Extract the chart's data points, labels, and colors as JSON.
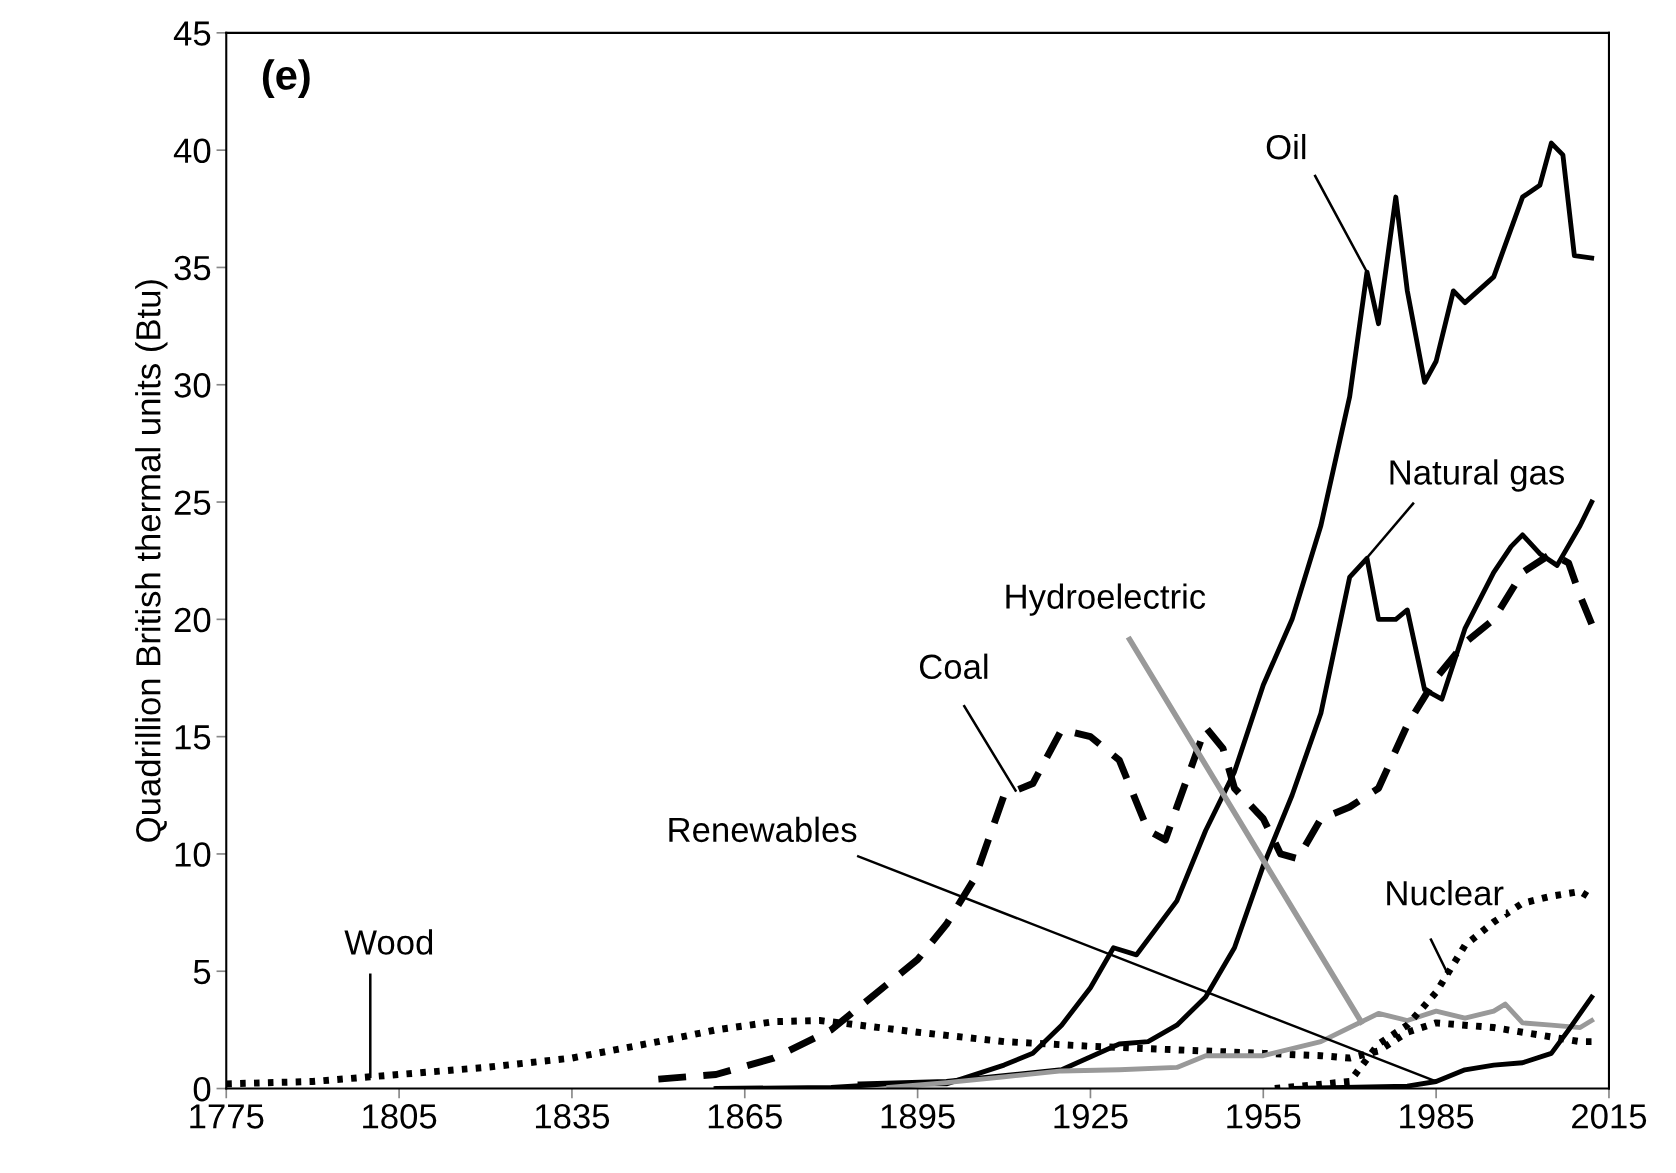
{
  "chart_data": {
    "type": "line",
    "title": "(e)",
    "ylabel": "Quadrillion British thermal units (Btu)",
    "xlim": [
      1775,
      2015
    ],
    "xticks": [
      1775,
      1805,
      1835,
      1865,
      1895,
      1925,
      1955,
      1985,
      2015
    ],
    "ylim": [
      0,
      45
    ],
    "yticks": [
      0,
      5,
      10,
      15,
      20,
      25,
      30,
      35,
      40,
      45
    ],
    "grid": false,
    "legend": false,
    "marker": "none",
    "series": [
      {
        "name": "Wood",
        "color": "#000000",
        "line_style": "dotted",
        "x": [
          1775,
          1790,
          1800,
          1810,
          1820,
          1835,
          1850,
          1860,
          1870,
          1878,
          1885,
          1895,
          1910,
          1925,
          1945,
          1955,
          1965,
          1970,
          1975,
          1980,
          1985,
          1990,
          1995,
          2000,
          2005,
          2010,
          2012
        ],
        "values": [
          0.2,
          0.3,
          0.5,
          0.7,
          0.9,
          1.3,
          2.0,
          2.5,
          2.85,
          2.9,
          2.7,
          2.4,
          2.0,
          1.8,
          1.6,
          1.5,
          1.4,
          1.3,
          1.6,
          2.4,
          2.8,
          2.7,
          2.6,
          2.4,
          2.2,
          2.0,
          2.0
        ]
      },
      {
        "name": "Coal",
        "color": "#000000",
        "line_style": "dashed",
        "x": [
          1850,
          1860,
          1870,
          1880,
          1890,
          1895,
          1900,
          1905,
          1910,
          1915,
          1920,
          1925,
          1930,
          1935,
          1938,
          1940,
          1945,
          1948,
          1950,
          1955,
          1958,
          1961,
          1965,
          1970,
          1975,
          1980,
          1985,
          1990,
          1995,
          2000,
          2005,
          2008,
          2010,
          2012
        ],
        "values": [
          0.4,
          0.6,
          1.3,
          2.5,
          4.5,
          5.5,
          7.0,
          9.0,
          12.5,
          13.0,
          15.3,
          15.0,
          14.0,
          11.0,
          10.6,
          12.0,
          15.4,
          14.5,
          12.8,
          11.5,
          10.0,
          9.8,
          11.5,
          12.0,
          12.8,
          15.5,
          17.5,
          19.0,
          20.0,
          22.0,
          22.8,
          22.4,
          21.0,
          19.8
        ]
      },
      {
        "name": "Oil",
        "color": "#000000",
        "line_style": "solid",
        "x": [
          1860,
          1880,
          1890,
          1900,
          1910,
          1915,
          1920,
          1925,
          1929,
          1933,
          1940,
          1945,
          1950,
          1955,
          1960,
          1965,
          1970,
          1973,
          1975,
          1978,
          1980,
          1983,
          1985,
          1988,
          1990,
          1995,
          2000,
          2003,
          2005,
          2007,
          2009,
          2012
        ],
        "values": [
          0.0,
          0.05,
          0.2,
          0.2,
          1.0,
          1.5,
          2.7,
          4.3,
          6.0,
          5.7,
          8.0,
          11.0,
          13.5,
          17.2,
          20.0,
          24.0,
          29.5,
          34.8,
          32.6,
          38.0,
          34.0,
          30.1,
          31.0,
          34.0,
          33.5,
          34.6,
          38.0,
          38.5,
          40.3,
          39.8,
          35.5,
          35.4
        ]
      },
      {
        "name": "Natural gas",
        "color": "#000000",
        "line_style": "solid",
        "x": [
          1885,
          1900,
          1920,
          1930,
          1935,
          1940,
          1945,
          1950,
          1955,
          1960,
          1965,
          1970,
          1973,
          1975,
          1978,
          1980,
          1983,
          1986,
          1990,
          1995,
          1998,
          2000,
          2003,
          2006,
          2010,
          2012
        ],
        "values": [
          0.2,
          0.3,
          0.8,
          1.9,
          2.0,
          2.7,
          3.9,
          6.0,
          9.5,
          12.5,
          16.0,
          21.8,
          22.6,
          20.0,
          20.0,
          20.4,
          17.0,
          16.6,
          19.6,
          22.0,
          23.1,
          23.6,
          22.8,
          22.3,
          24.0,
          25.0
        ]
      },
      {
        "name": "Hydroelectric",
        "color": "#999999",
        "line_style": "solid",
        "x": [
          1890,
          1900,
          1910,
          1920,
          1930,
          1940,
          1945,
          1955,
          1965,
          1970,
          1975,
          1980,
          1985,
          1990,
          1995,
          1997,
          2000,
          2005,
          2010,
          2012
        ],
        "values": [
          0.05,
          0.25,
          0.5,
          0.75,
          0.8,
          0.9,
          1.4,
          1.4,
          2.0,
          2.6,
          3.2,
          2.9,
          3.3,
          3.0,
          3.3,
          3.6,
          2.8,
          2.7,
          2.6,
          2.9
        ]
      },
      {
        "name": "Nuclear",
        "color": "#000000",
        "line_style": "dotted",
        "x": [
          1957,
          1970,
          1975,
          1980,
          1985,
          1990,
          1995,
          2000,
          2005,
          2010,
          2012
        ],
        "values": [
          0.0,
          0.3,
          1.9,
          2.7,
          4.1,
          6.1,
          7.1,
          7.9,
          8.2,
          8.4,
          8.1
        ]
      },
      {
        "name": "Renewables",
        "color": "#000000",
        "line_style": "solid",
        "x": [
          1960,
          1980,
          1985,
          1990,
          1995,
          2000,
          2005,
          2008,
          2012
        ],
        "values": [
          0.0,
          0.1,
          0.3,
          0.8,
          1.0,
          1.1,
          1.5,
          2.5,
          3.9
        ]
      }
    ]
  }
}
